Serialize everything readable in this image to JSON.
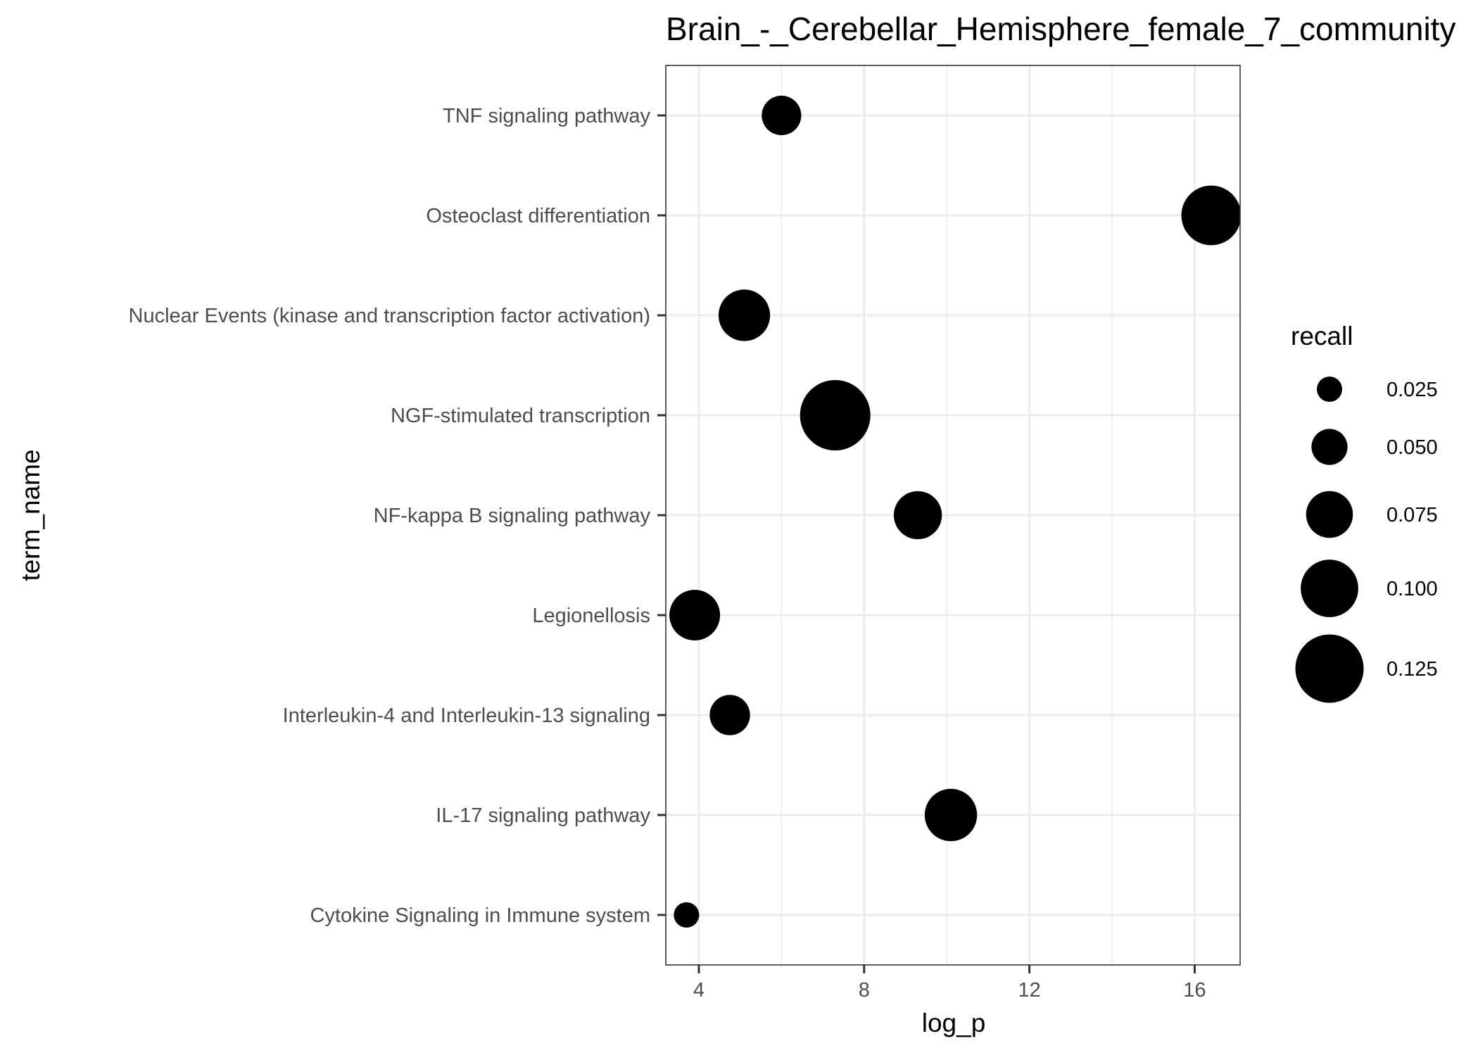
{
  "chart_data": {
    "type": "scatter",
    "title": "Brain_-_Cerebellar_Hemisphere_female_7_community",
    "xlabel": "log_p",
    "ylabel": "term_name",
    "xlim": [
      3.2,
      17.1
    ],
    "x_ticks": [
      "4",
      "8",
      "12",
      "16"
    ],
    "x_tick_values": [
      4,
      8,
      12,
      16
    ],
    "grid": true,
    "categories": [
      "TNF signaling pathway",
      "Osteoclast differentiation",
      "Nuclear Events (kinase and transcription factor activation)",
      "NGF-stimulated transcription",
      "NF-kappa B signaling pathway",
      "Legionellosis",
      "Interleukin-4 and Interleukin-13 signaling",
      "IL-17 signaling pathway",
      "Cytokine Signaling in Immune system"
    ],
    "points": [
      {
        "term": "TNF signaling pathway",
        "log_p": 6.0,
        "recall": 0.058
      },
      {
        "term": "Osteoclast differentiation",
        "log_p": 16.4,
        "recall": 0.105
      },
      {
        "term": "Nuclear Events (kinase and transcription factor activation)",
        "log_p": 5.1,
        "recall": 0.086
      },
      {
        "term": "NGF-stimulated transcription",
        "log_p": 7.3,
        "recall": 0.13
      },
      {
        "term": "NF-kappa B signaling pathway",
        "log_p": 9.3,
        "recall": 0.078
      },
      {
        "term": "Legionellosis",
        "log_p": 3.9,
        "recall": 0.084
      },
      {
        "term": "Interleukin-4 and Interleukin-13 signaling",
        "log_p": 4.75,
        "recall": 0.06
      },
      {
        "term": "IL-17 signaling pathway",
        "log_p": 10.1,
        "recall": 0.088
      },
      {
        "term": "Cytokine Signaling in Immune system",
        "log_p": 3.7,
        "recall": 0.025
      }
    ],
    "legend": {
      "title": "recall",
      "position": "right",
      "entries": [
        {
          "label": "0.025",
          "value": 0.025
        },
        {
          "label": "0.050",
          "value": 0.05
        },
        {
          "label": "0.075",
          "value": 0.075
        },
        {
          "label": "0.100",
          "value": 0.1
        },
        {
          "label": "0.125",
          "value": 0.125
        }
      ]
    },
    "point_color": "#000000",
    "grid_color": "#ebebeb"
  }
}
